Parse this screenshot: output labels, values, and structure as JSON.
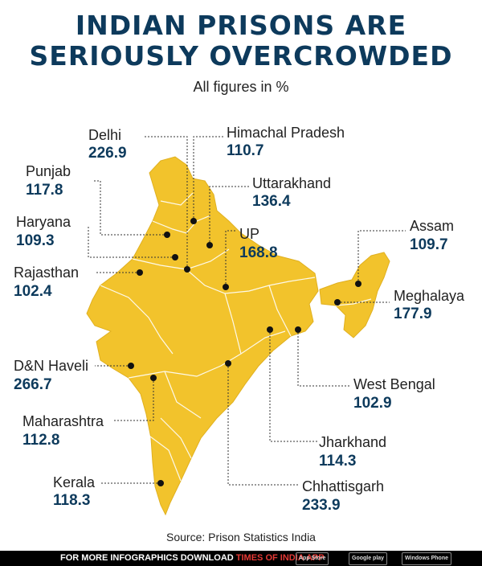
{
  "title_line1": "INDIAN PRISONS ARE",
  "title_line2": "SERIOUSLY OVERCROWDED",
  "subtitle": "All figures in %",
  "source": "Source: Prison Statistics India",
  "colors": {
    "map_fill": "#f2c32c",
    "title": "#0d3a5c",
    "border": "#ffffff"
  },
  "states": [
    {
      "name": "Delhi",
      "value": "226.9"
    },
    {
      "name": "Himachal Pradesh",
      "value": "110.7"
    },
    {
      "name": "Punjab",
      "value": "117.8"
    },
    {
      "name": "Uttarakhand",
      "value": "136.4"
    },
    {
      "name": "Haryana",
      "value": "109.3"
    },
    {
      "name": "UP",
      "value": "168.8"
    },
    {
      "name": "Assam",
      "value": "109.7"
    },
    {
      "name": "Rajasthan",
      "value": "102.4"
    },
    {
      "name": "Meghalaya",
      "value": "177.9"
    },
    {
      "name": "D&N Haveli",
      "value": "266.7"
    },
    {
      "name": "West Bengal",
      "value": "102.9"
    },
    {
      "name": "Maharashtra",
      "value": "112.8"
    },
    {
      "name": "Jharkhand",
      "value": "114.3"
    },
    {
      "name": "Kerala",
      "value": "118.3"
    },
    {
      "name": "Chhattisgarh",
      "value": "233.9"
    }
  ],
  "footer": {
    "text_prefix": "FOR MORE  INFOGRAPHICS DOWNLOAD ",
    "text_app": "TIMES OF INDIA APP",
    "badges": [
      "App Store",
      "Google play",
      "Windows Phone"
    ]
  }
}
